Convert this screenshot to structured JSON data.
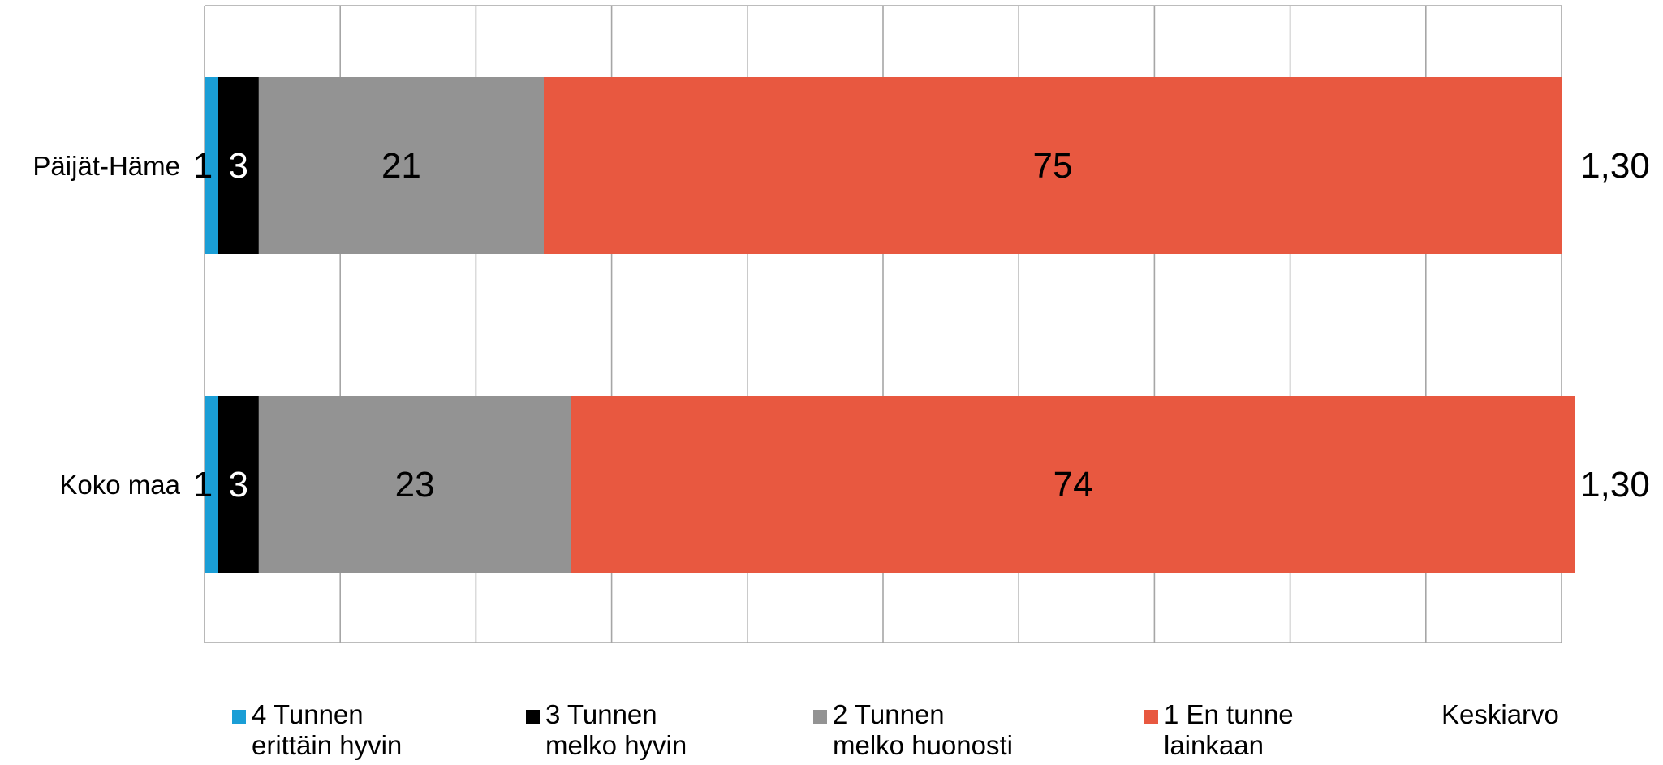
{
  "chart_data": {
    "type": "bar",
    "orientation": "horizontal",
    "stacked": true,
    "categories": [
      "Päijät-Häme",
      "Koko maa"
    ],
    "series": [
      {
        "name": "4 Tunnen\nerittäin hyvin",
        "color": "#1a9ed6",
        "values": [
          1,
          1
        ],
        "labels": [
          "1",
          "1"
        ]
      },
      {
        "name": "3 Tunnen\nmelko hyvin",
        "color": "#000000",
        "values": [
          3,
          3
        ],
        "labels": [
          "3",
          "3"
        ]
      },
      {
        "name": "2 Tunnen\nmelko huonosti",
        "color": "#939393",
        "values": [
          21,
          23
        ],
        "labels": [
          "21",
          "23"
        ]
      },
      {
        "name": "1 En tunne\nlainkaan",
        "color": "#e85840",
        "values": [
          75,
          74
        ],
        "labels": [
          "75",
          "74"
        ]
      }
    ],
    "extra_column": {
      "name": "Keskiarvo",
      "values": [
        "1,30",
        "1,30"
      ]
    },
    "xlim": [
      0,
      100
    ],
    "grid": true,
    "legend_position": "bottom"
  }
}
